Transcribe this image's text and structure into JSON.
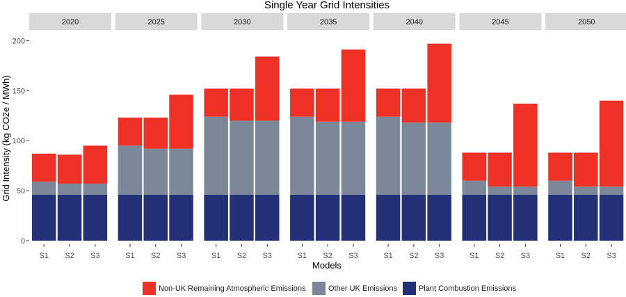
{
  "chart_data": {
    "type": "bar",
    "stacked": true,
    "faceted": true,
    "title": "Single Year Grid Intensities",
    "xlabel": "Models",
    "ylabel": "Grid Intensity (kg CO2e / MWh)",
    "ylim": [
      0,
      210
    ],
    "yticks": [
      0,
      50,
      100,
      150,
      200
    ],
    "grid": false,
    "legend_position": "bottom",
    "categories": [
      "S1",
      "S2",
      "S3"
    ],
    "series_order": [
      "Plant Combustion Emissions",
      "Other UK Emissions",
      "Non-UK Remaining Atmospheric Emissions"
    ],
    "legend_order": [
      "Non-UK Remaining Atmospheric Emissions",
      "Other UK Emissions",
      "Plant Combustion Emissions"
    ],
    "colors": {
      "Plant Combustion Emissions": "#232F77",
      "Other UK Emissions": "#7A8899",
      "Non-UK Remaining Atmospheric Emissions": "#EE3124"
    },
    "facets": [
      {
        "year": "2020",
        "series": [
          {
            "name": "Plant Combustion Emissions",
            "values": [
              46,
              46,
              46
            ]
          },
          {
            "name": "Other UK Emissions",
            "values": [
              13,
              11,
              11
            ]
          },
          {
            "name": "Non-UK Remaining Atmospheric Emissions",
            "values": [
              28,
              29,
              38
            ]
          }
        ]
      },
      {
        "year": "2025",
        "series": [
          {
            "name": "Plant Combustion Emissions",
            "values": [
              46,
              46,
              46
            ]
          },
          {
            "name": "Other UK Emissions",
            "values": [
              49,
              46,
              46
            ]
          },
          {
            "name": "Non-UK Remaining Atmospheric Emissions",
            "values": [
              28,
              31,
              54
            ]
          }
        ]
      },
      {
        "year": "2030",
        "series": [
          {
            "name": "Plant Combustion Emissions",
            "values": [
              46,
              46,
              46
            ]
          },
          {
            "name": "Other UK Emissions",
            "values": [
              78,
              74,
              74
            ]
          },
          {
            "name": "Non-UK Remaining Atmospheric Emissions",
            "values": [
              28,
              32,
              64
            ]
          }
        ]
      },
      {
        "year": "2035",
        "series": [
          {
            "name": "Plant Combustion Emissions",
            "values": [
              46,
              46,
              46
            ]
          },
          {
            "name": "Other UK Emissions",
            "values": [
              78,
              73,
              73
            ]
          },
          {
            "name": "Non-UK Remaining Atmospheric Emissions",
            "values": [
              28,
              33,
              72
            ]
          }
        ]
      },
      {
        "year": "2040",
        "series": [
          {
            "name": "Plant Combustion Emissions",
            "values": [
              46,
              46,
              46
            ]
          },
          {
            "name": "Other UK Emissions",
            "values": [
              78,
              72,
              72
            ]
          },
          {
            "name": "Non-UK Remaining Atmospheric Emissions",
            "values": [
              28,
              34,
              79
            ]
          }
        ]
      },
      {
        "year": "2045",
        "series": [
          {
            "name": "Plant Combustion Emissions",
            "values": [
              46,
              46,
              46
            ]
          },
          {
            "name": "Other UK Emissions",
            "values": [
              14,
              8,
              8
            ]
          },
          {
            "name": "Non-UK Remaining Atmospheric Emissions",
            "values": [
              28,
              34,
              83
            ]
          }
        ]
      },
      {
        "year": "2050",
        "series": [
          {
            "name": "Plant Combustion Emissions",
            "values": [
              46,
              46,
              46
            ]
          },
          {
            "name": "Other UK Emissions",
            "values": [
              14,
              8,
              8
            ]
          },
          {
            "name": "Non-UK Remaining Atmospheric Emissions",
            "values": [
              28,
              34,
              86
            ]
          }
        ]
      }
    ]
  }
}
